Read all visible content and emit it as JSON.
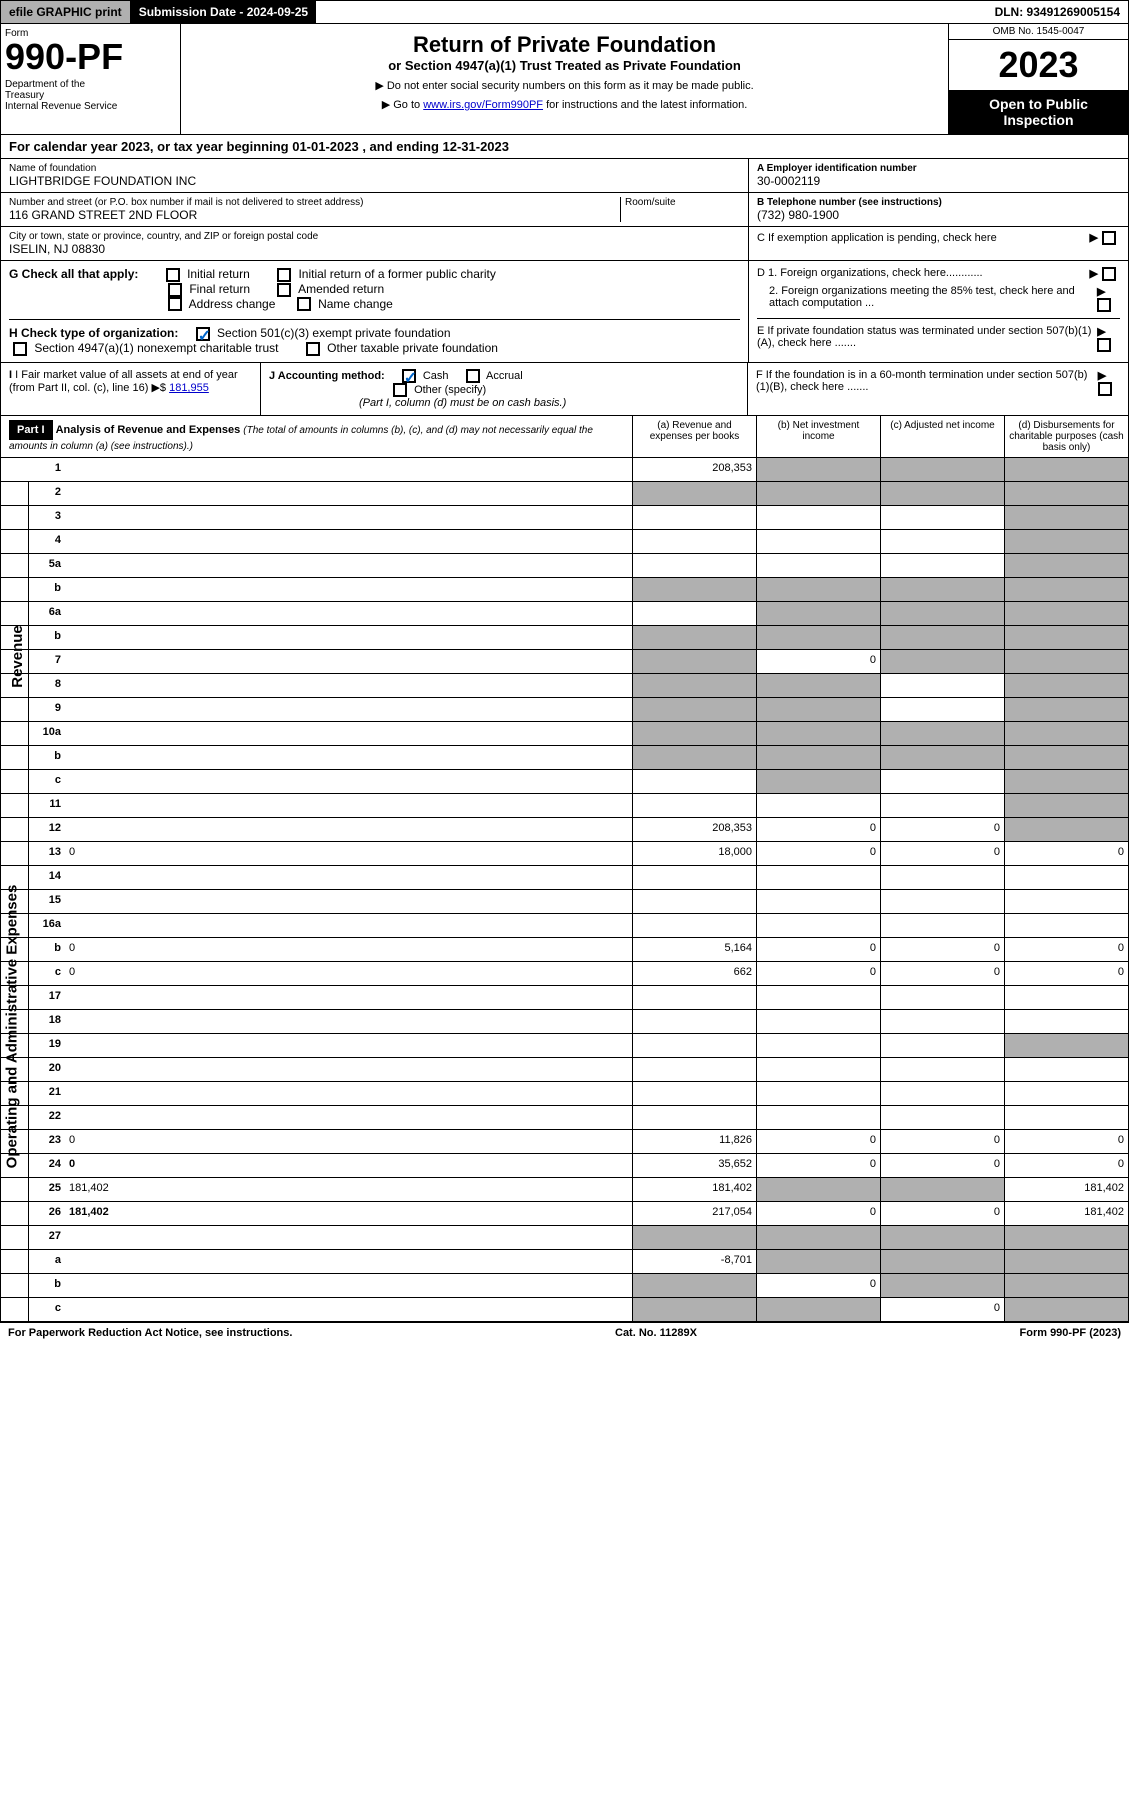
{
  "topbar": {
    "efile": "efile GRAPHIC print",
    "submission": "Submission Date - 2024-09-25",
    "dln": "DLN: 93491269005154"
  },
  "header": {
    "form_label": "Form",
    "form_number": "990-PF",
    "dept": "Department of the Treasury\nInternal Revenue Service",
    "title": "Return of Private Foundation",
    "subtitle": "or Section 4947(a)(1) Trust Treated as Private Foundation",
    "note1": "▶ Do not enter social security numbers on this form as it may be made public.",
    "note2_prefix": "▶ Go to ",
    "note2_link": "www.irs.gov/Form990PF",
    "note2_suffix": " for instructions and the latest information.",
    "omb": "OMB No. 1545-0047",
    "year": "2023",
    "open_public": "Open to Public Inspection"
  },
  "cal_year": "For calendar year 2023, or tax year beginning 01-01-2023                         , and ending 12-31-2023",
  "info": {
    "name_label": "Name of foundation",
    "name": "LIGHTBRIDGE FOUNDATION INC",
    "addr_label": "Number and street (or P.O. box number if mail is not delivered to street address)",
    "addr": "116 GRAND STREET 2ND FLOOR",
    "room_label": "Room/suite",
    "city_label": "City or town, state or province, country, and ZIP or foreign postal code",
    "city": "ISELIN, NJ  08830",
    "ein_label": "A Employer identification number",
    "ein": "30-0002119",
    "phone_label": "B Telephone number (see instructions)",
    "phone": "(732) 980-1900",
    "c_label": "C If exemption application is pending, check here"
  },
  "section_g": {
    "label": "G Check all that apply:",
    "opts": [
      "Initial return",
      "Final return",
      "Address change",
      "Initial return of a former public charity",
      "Amended return",
      "Name change"
    ]
  },
  "section_h": {
    "label": "H Check type of organization:",
    "opt1": "Section 501(c)(3) exempt private foundation",
    "opt2": "Section 4947(a)(1) nonexempt charitable trust",
    "opt3": "Other taxable private foundation"
  },
  "section_d": {
    "d1": "D 1. Foreign organizations, check here............",
    "d2": "2. Foreign organizations meeting the 85% test, check here and attach computation ..."
  },
  "section_e": "E If private foundation status was terminated under section 507(b)(1)(A), check here .......",
  "section_i": {
    "label": "I Fair market value of all assets at end of year (from Part II, col. (c), line 16)",
    "arrow": "▶$",
    "value": "181,955"
  },
  "section_j": {
    "label": "J Accounting method:",
    "cash": "Cash",
    "accrual": "Accrual",
    "other": "Other (specify)",
    "note": "(Part I, column (d) must be on cash basis.)"
  },
  "section_f": "F If the foundation is in a 60-month termination under section 507(b)(1)(B), check here .......",
  "part1": {
    "label": "Part I",
    "title": "Analysis of Revenue and Expenses",
    "note": "(The total of amounts in columns (b), (c), and (d) may not necessarily equal the amounts in column (a) (see instructions).)",
    "col_a": "(a) Revenue and expenses per books",
    "col_b": "(b) Net investment income",
    "col_c": "(c) Adjusted net income",
    "col_d": "(d) Disbursements for charitable purposes (cash basis only)"
  },
  "sides": {
    "revenue": "Revenue",
    "expenses": "Operating and Administrative Expenses"
  },
  "lines": [
    {
      "n": "1",
      "d": "",
      "a": "208,353",
      "b": "",
      "c": "",
      "shade_b": true,
      "shade_c": true,
      "shade_d": true
    },
    {
      "n": "2",
      "d": "",
      "a": "",
      "b": "",
      "c": "",
      "shade_a": true,
      "shade_b": true,
      "shade_c": true,
      "shade_d": true
    },
    {
      "n": "3",
      "d": "",
      "a": "",
      "b": "",
      "c": "",
      "shade_d": true
    },
    {
      "n": "4",
      "d": "",
      "a": "",
      "b": "",
      "c": "",
      "shade_d": true
    },
    {
      "n": "5a",
      "d": "",
      "a": "",
      "b": "",
      "c": "",
      "shade_d": true
    },
    {
      "n": "b",
      "d": "",
      "a": "",
      "b": "",
      "c": "",
      "shade_a": true,
      "shade_b": true,
      "shade_c": true,
      "shade_d": true
    },
    {
      "n": "6a",
      "d": "",
      "a": "",
      "b": "",
      "c": "",
      "shade_b": true,
      "shade_c": true,
      "shade_d": true
    },
    {
      "n": "b",
      "d": "",
      "a": "",
      "b": "",
      "c": "",
      "shade_a": true,
      "shade_b": true,
      "shade_c": true,
      "shade_d": true
    },
    {
      "n": "7",
      "d": "",
      "a": "",
      "b": "0",
      "c": "",
      "shade_a": true,
      "shade_c": true,
      "shade_d": true
    },
    {
      "n": "8",
      "d": "",
      "a": "",
      "b": "",
      "c": "",
      "shade_a": true,
      "shade_b": true,
      "shade_d": true
    },
    {
      "n": "9",
      "d": "",
      "a": "",
      "b": "",
      "c": "",
      "shade_a": true,
      "shade_b": true,
      "shade_d": true
    },
    {
      "n": "10a",
      "d": "",
      "a": "",
      "b": "",
      "c": "",
      "shade_a": true,
      "shade_b": true,
      "shade_c": true,
      "shade_d": true
    },
    {
      "n": "b",
      "d": "",
      "a": "",
      "b": "",
      "c": "",
      "shade_a": true,
      "shade_b": true,
      "shade_c": true,
      "shade_d": true
    },
    {
      "n": "c",
      "d": "",
      "a": "",
      "b": "",
      "c": "",
      "shade_b": true,
      "shade_d": true
    },
    {
      "n": "11",
      "d": "",
      "a": "",
      "b": "",
      "c": "",
      "shade_d": true
    },
    {
      "n": "12",
      "d": "",
      "a": "208,353",
      "b": "0",
      "c": "0",
      "bold": true,
      "shade_d": true
    },
    {
      "n": "13",
      "d": "0",
      "a": "18,000",
      "b": "0",
      "c": "0"
    },
    {
      "n": "14",
      "d": "",
      "a": "",
      "b": "",
      "c": ""
    },
    {
      "n": "15",
      "d": "",
      "a": "",
      "b": "",
      "c": ""
    },
    {
      "n": "16a",
      "d": "",
      "a": "",
      "b": "",
      "c": ""
    },
    {
      "n": "b",
      "d": "0",
      "a": "5,164",
      "b": "0",
      "c": "0"
    },
    {
      "n": "c",
      "d": "0",
      "a": "662",
      "b": "0",
      "c": "0"
    },
    {
      "n": "17",
      "d": "",
      "a": "",
      "b": "",
      "c": ""
    },
    {
      "n": "18",
      "d": "",
      "a": "",
      "b": "",
      "c": ""
    },
    {
      "n": "19",
      "d": "",
      "a": "",
      "b": "",
      "c": "",
      "shade_d": true
    },
    {
      "n": "20",
      "d": "",
      "a": "",
      "b": "",
      "c": ""
    },
    {
      "n": "21",
      "d": "",
      "a": "",
      "b": "",
      "c": ""
    },
    {
      "n": "22",
      "d": "",
      "a": "",
      "b": "",
      "c": ""
    },
    {
      "n": "23",
      "d": "0",
      "a": "11,826",
      "b": "0",
      "c": "0"
    },
    {
      "n": "24",
      "d": "0",
      "a": "35,652",
      "b": "0",
      "c": "0",
      "bold": true
    },
    {
      "n": "25",
      "d": "181,402",
      "a": "181,402",
      "b": "",
      "c": "",
      "shade_b": true,
      "shade_c": true
    },
    {
      "n": "26",
      "d": "181,402",
      "a": "217,054",
      "b": "0",
      "c": "0",
      "bold": true
    },
    {
      "n": "27",
      "d": "",
      "a": "",
      "b": "",
      "c": "",
      "shade_a": true,
      "shade_b": true,
      "shade_c": true,
      "shade_d": true
    },
    {
      "n": "a",
      "d": "",
      "a": "-8,701",
      "b": "",
      "c": "",
      "bold": true,
      "shade_b": true,
      "shade_c": true,
      "shade_d": true
    },
    {
      "n": "b",
      "d": "",
      "a": "",
      "b": "0",
      "c": "",
      "bold": true,
      "shade_a": true,
      "shade_c": true,
      "shade_d": true
    },
    {
      "n": "c",
      "d": "",
      "a": "",
      "b": "",
      "c": "0",
      "bold": true,
      "shade_a": true,
      "shade_b": true,
      "shade_d": true
    }
  ],
  "footer": {
    "left": "For Paperwork Reduction Act Notice, see instructions.",
    "center": "Cat. No. 11289X",
    "right": "Form 990-PF (2023)"
  }
}
